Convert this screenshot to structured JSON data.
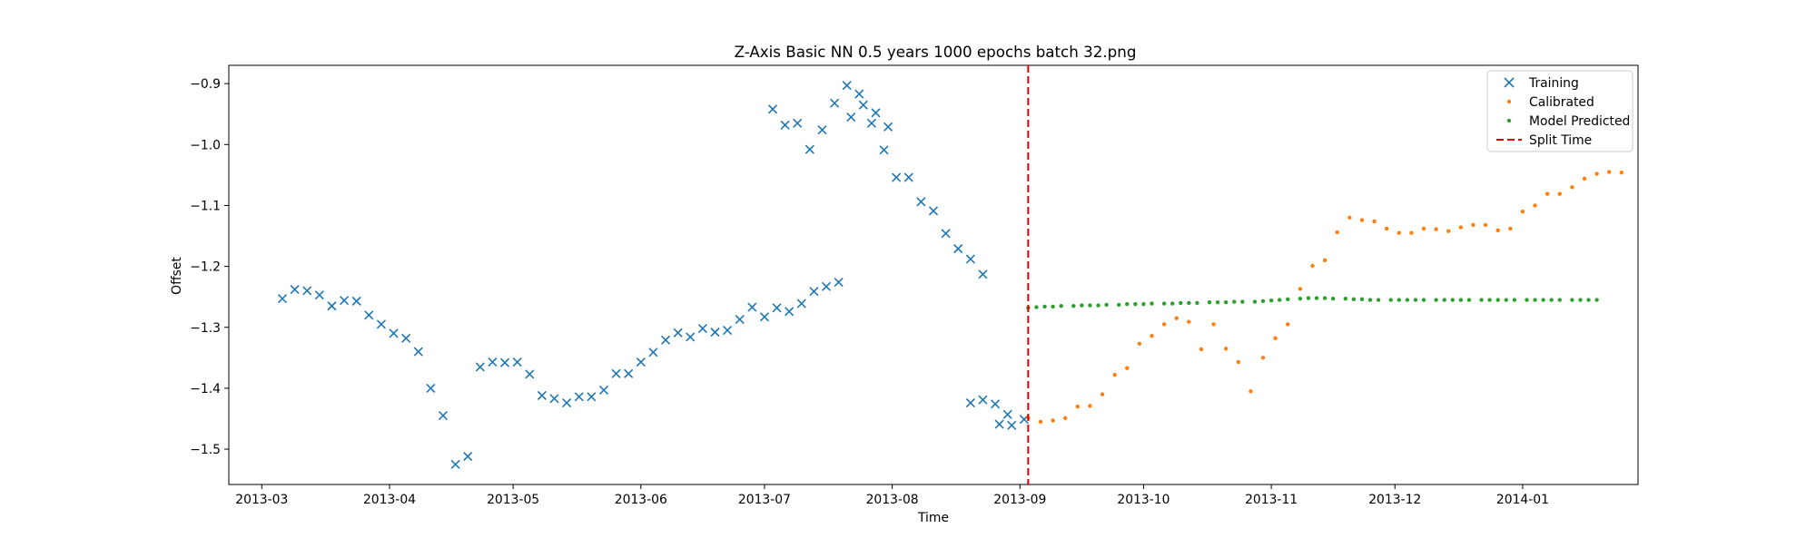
{
  "chart_data": {
    "type": "scatter",
    "title": "Z-Axis Basic NN 0.5 years 1000 epochs batch 32.png",
    "xlabel": "Time",
    "ylabel": "Offset",
    "xlim": [
      "2013-02-21",
      "2014-01-29"
    ],
    "ylim": [
      -1.558,
      -0.87
    ],
    "x_ticks": [
      "2013-03",
      "2013-04",
      "2013-05",
      "2013-06",
      "2013-07",
      "2013-08",
      "2013-09",
      "2013-10",
      "2013-11",
      "2013-12",
      "2014-01"
    ],
    "y_ticks": [
      -0.9,
      -1.0,
      -1.1,
      -1.2,
      -1.3,
      -1.4,
      -1.5
    ],
    "grid": false,
    "legend_position": "upper right",
    "split_time": "2013-09-03",
    "series": [
      {
        "name": "Training",
        "marker": "x",
        "color": "#1f77b4",
        "points": [
          [
            "2013-03-06",
            -1.253
          ],
          [
            "2013-03-09",
            -1.238
          ],
          [
            "2013-03-12",
            -1.24
          ],
          [
            "2013-03-15",
            -1.247
          ],
          [
            "2013-03-18",
            -1.265
          ],
          [
            "2013-03-21",
            -1.256
          ],
          [
            "2013-03-24",
            -1.257
          ],
          [
            "2013-03-27",
            -1.28
          ],
          [
            "2013-03-30",
            -1.295
          ],
          [
            "2013-04-02",
            -1.31
          ],
          [
            "2013-04-05",
            -1.318
          ],
          [
            "2013-04-08",
            -1.34
          ],
          [
            "2013-04-11",
            -1.4
          ],
          [
            "2013-04-14",
            -1.445
          ],
          [
            "2013-04-17",
            -1.525
          ],
          [
            "2013-04-20",
            -1.512
          ],
          [
            "2013-04-23",
            -1.365
          ],
          [
            "2013-04-26",
            -1.357
          ],
          [
            "2013-04-29",
            -1.358
          ],
          [
            "2013-05-02",
            -1.357
          ],
          [
            "2013-05-05",
            -1.377
          ],
          [
            "2013-05-08",
            -1.412
          ],
          [
            "2013-05-11",
            -1.417
          ],
          [
            "2013-05-14",
            -1.424
          ],
          [
            "2013-05-17",
            -1.414
          ],
          [
            "2013-05-20",
            -1.414
          ],
          [
            "2013-05-23",
            -1.403
          ],
          [
            "2013-05-26",
            -1.376
          ],
          [
            "2013-05-29",
            -1.376
          ],
          [
            "2013-06-01",
            -1.357
          ],
          [
            "2013-06-04",
            -1.341
          ],
          [
            "2013-06-07",
            -1.321
          ],
          [
            "2013-06-10",
            -1.309
          ],
          [
            "2013-06-13",
            -1.316
          ],
          [
            "2013-06-16",
            -1.302
          ],
          [
            "2013-06-19",
            -1.308
          ],
          [
            "2013-06-22",
            -1.305
          ],
          [
            "2013-06-25",
            -1.287
          ],
          [
            "2013-06-28",
            -1.267
          ],
          [
            "2013-07-01",
            -1.283
          ],
          [
            "2013-07-04",
            -1.268
          ],
          [
            "2013-07-07",
            -1.274
          ],
          [
            "2013-07-10",
            -1.261
          ],
          [
            "2013-07-13",
            -1.241
          ],
          [
            "2013-07-16",
            -1.233
          ],
          [
            "2013-07-19",
            -1.226
          ],
          [
            "2013-07-22",
            -0.955
          ],
          [
            "2013-07-25",
            -0.935
          ],
          [
            "2013-07-28",
            -0.948
          ],
          [
            "2013-07-31",
            -0.971
          ],
          [
            "2013-07-03",
            -0.942
          ],
          [
            "2013-07-06",
            -0.968
          ],
          [
            "2013-07-09",
            -0.965
          ],
          [
            "2013-07-12",
            -1.008
          ],
          [
            "2013-07-15",
            -0.976
          ],
          [
            "2013-07-18",
            -0.932
          ],
          [
            "2013-07-21",
            -0.903
          ],
          [
            "2013-07-24",
            -0.917
          ],
          [
            "2013-07-27",
            -0.965
          ],
          [
            "2013-07-30",
            -1.009
          ],
          [
            "2013-08-02",
            -1.054
          ],
          [
            "2013-08-05",
            -1.054
          ],
          [
            "2013-08-08",
            -1.094
          ],
          [
            "2013-08-11",
            -1.109
          ],
          [
            "2013-08-14",
            -1.146
          ],
          [
            "2013-08-17",
            -1.171
          ],
          [
            "2013-08-20",
            -1.188
          ],
          [
            "2013-08-23",
            -1.213
          ],
          [
            "2013-08-20",
            -1.424
          ],
          [
            "2013-08-23",
            -1.419
          ],
          [
            "2013-08-26",
            -1.426
          ],
          [
            "2013-08-29",
            -1.443
          ],
          [
            "2013-08-27",
            -1.459
          ],
          [
            "2013-08-30",
            -1.461
          ],
          [
            "2013-09-02",
            -1.451
          ]
        ]
      },
      {
        "name": "Calibrated",
        "marker": "dot",
        "color": "#ff7f0e",
        "points": [
          [
            "2013-09-03",
            -1.449
          ],
          [
            "2013-09-06",
            -1.455
          ],
          [
            "2013-09-09",
            -1.453
          ],
          [
            "2013-09-12",
            -1.449
          ],
          [
            "2013-09-15",
            -1.43
          ],
          [
            "2013-09-18",
            -1.429
          ],
          [
            "2013-09-21",
            -1.41
          ],
          [
            "2013-09-24",
            -1.378
          ],
          [
            "2013-09-27",
            -1.367
          ],
          [
            "2013-09-30",
            -1.327
          ],
          [
            "2013-10-03",
            -1.314
          ],
          [
            "2013-10-06",
            -1.295
          ],
          [
            "2013-10-09",
            -1.285
          ],
          [
            "2013-10-12",
            -1.291
          ],
          [
            "2013-10-15",
            -1.336
          ],
          [
            "2013-10-18",
            -1.295
          ],
          [
            "2013-10-21",
            -1.335
          ],
          [
            "2013-10-24",
            -1.357
          ],
          [
            "2013-10-27",
            -1.405
          ],
          [
            "2013-10-30",
            -1.35
          ],
          [
            "2013-11-02",
            -1.318
          ],
          [
            "2013-11-05",
            -1.295
          ],
          [
            "2013-11-08",
            -1.237
          ],
          [
            "2013-11-11",
            -1.199
          ],
          [
            "2013-11-14",
            -1.19
          ],
          [
            "2013-11-17",
            -1.144
          ],
          [
            "2013-11-20",
            -1.12
          ],
          [
            "2013-11-23",
            -1.124
          ],
          [
            "2013-11-26",
            -1.126
          ],
          [
            "2013-11-29",
            -1.138
          ],
          [
            "2013-12-02",
            -1.145
          ],
          [
            "2013-12-05",
            -1.145
          ],
          [
            "2013-12-08",
            -1.138
          ],
          [
            "2013-12-11",
            -1.139
          ],
          [
            "2013-12-14",
            -1.142
          ],
          [
            "2013-12-17",
            -1.136
          ],
          [
            "2013-12-20",
            -1.132
          ],
          [
            "2013-12-23",
            -1.132
          ],
          [
            "2013-12-26",
            -1.141
          ],
          [
            "2013-12-29",
            -1.138
          ],
          [
            "2014-01-01",
            -1.11
          ],
          [
            "2014-01-04",
            -1.1
          ],
          [
            "2014-01-07",
            -1.081
          ],
          [
            "2014-01-10",
            -1.081
          ],
          [
            "2014-01-13",
            -1.07
          ],
          [
            "2014-01-16",
            -1.056
          ],
          [
            "2014-01-19",
            -1.048
          ],
          [
            "2014-01-22",
            -1.045
          ],
          [
            "2014-01-25",
            -1.046
          ]
        ]
      },
      {
        "name": "Model Predicted",
        "marker": "dot",
        "color": "#2ca02c",
        "points": []
      }
    ]
  },
  "legend": {
    "training": "Training",
    "calibrated": "Calibrated",
    "model_predicted": "Model Predicted",
    "split_time": "Split Time"
  }
}
